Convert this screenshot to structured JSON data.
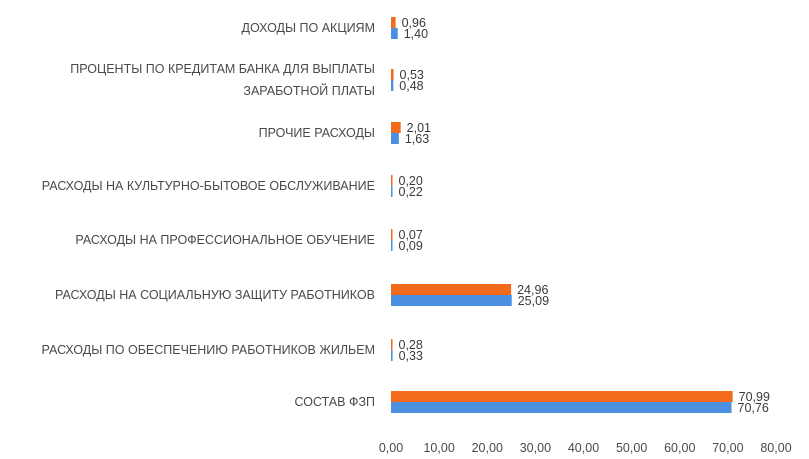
{
  "chart_data": {
    "type": "bar",
    "orientation": "horizontal",
    "categories": [
      [
        "ДОХОДЫ ПО АКЦИЯМ"
      ],
      [
        "ПРОЦЕНТЫ ПО КРЕДИТАМ БАНКА ДЛЯ ВЫПЛАТЫ",
        "ЗАРАБОТНОЙ ПЛАТЫ"
      ],
      [
        "ПРОЧИЕ РАСХОДЫ"
      ],
      [
        "РАСХОДЫ НА КУЛЬТУРНО-БЫТОВОЕ ОБСЛУЖИВАНИЕ"
      ],
      [
        "РАСХОДЫ НА ПРОФЕССИОНАЛЬНОЕ ОБУЧЕНИЕ"
      ],
      [
        "РАСХОДЫ НА СОЦИАЛЬНУЮ ЗАЩИТУ РАБОТНИКОВ"
      ],
      [
        "РАСХОДЫ  ПО ОБЕСПЕЧЕНИЮ РАБОТНИКОВ ЖИЛЬЕМ"
      ],
      [
        "СОСТАВ ФЗП"
      ]
    ],
    "series": [
      {
        "color": "#F26B1D",
        "values": [
          0.96,
          0.53,
          2.01,
          0.2,
          0.07,
          24.96,
          0.28,
          70.99
        ],
        "labels": [
          "0,96",
          "0,53",
          "2,01",
          "0,20",
          "0,07",
          "24,96",
          "0,28",
          "70,99"
        ]
      },
      {
        "color": "#4A8FE0",
        "values": [
          1.4,
          0.48,
          1.63,
          0.22,
          0.09,
          25.09,
          0.33,
          70.76
        ],
        "labels": [
          "1,40",
          "0,48",
          "1,63",
          "0,22",
          "0,09",
          "25,09",
          "0,33",
          "70,76"
        ]
      }
    ],
    "xlim": [
      0,
      80
    ],
    "xticks": [
      "0,00",
      "10,00",
      "20,00",
      "30,00",
      "40,00",
      "50,00",
      "60,00",
      "70,00",
      "80,00"
    ],
    "grid": false,
    "legend": "none"
  }
}
